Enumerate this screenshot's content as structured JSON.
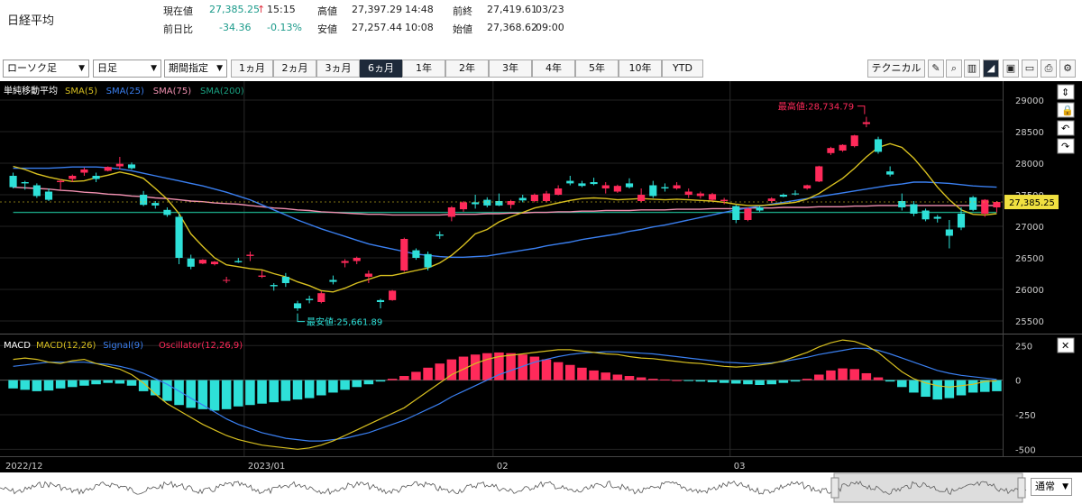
{
  "quote": {
    "name": "日経平均",
    "current_label": "現在値",
    "current_value": "27,385.25",
    "current_arrow": "↑",
    "current_time": "15:15",
    "change_label": "前日比",
    "change_value": "-34.36",
    "change_pct": "-0.13%",
    "high_label": "高値",
    "high_value": "27,397.29",
    "high_time": "14:48",
    "low_label": "安値",
    "low_value": "27,257.44",
    "low_time": "10:08",
    "prev_label": "前終",
    "prev_value": "27,419.61",
    "prev_date": "03/23",
    "open_label": "始値",
    "open_value": "27,368.62",
    "open_time": "09:00"
  },
  "toolbar": {
    "chart_type": "ローソク足",
    "interval": "日足",
    "period_mode": "期間指定",
    "periods": [
      "1ヵ月",
      "2ヵ月",
      "3ヵ月",
      "6ヵ月",
      "1年",
      "2年",
      "3年",
      "4年",
      "5年",
      "10年",
      "YTD"
    ],
    "active_period": "6ヵ月",
    "technical_label": "テクニカル",
    "icons": [
      "pencil-icon",
      "zoom-icon",
      "bar-chart-icon",
      "area-chart-icon",
      "save-icon",
      "folder-icon",
      "open-folder-icon",
      "print-icon",
      "settings-icon"
    ]
  },
  "chart_data": [
    {
      "type": "candlestick",
      "panel_title": "単純移動平均",
      "legend": [
        {
          "name": "SMA(5)",
          "color": "#d8c020"
        },
        {
          "name": "SMA(25)",
          "color": "#3a7ff0"
        },
        {
          "name": "SMA(75)",
          "color": "#f090b0"
        },
        {
          "name": "SMA(200)",
          "color": "#1aa080"
        }
      ],
      "up_color": "#ff2a5a",
      "down_color": "#2ee0d8",
      "ylim": [
        25300,
        29300
      ],
      "yticks": [
        25500,
        26000,
        26500,
        27000,
        27500,
        28000,
        28500,
        29000
      ],
      "ytick_labels": [
        "25500",
        "26000",
        "26500",
        "27000",
        "27500",
        "28000",
        "28500",
        "29000"
      ],
      "xtick_labels": [
        "2022/12",
        "2023/01",
        "02",
        "03"
      ],
      "last_price_label": "27,385.25",
      "last_price": 27385.25,
      "max_annotation": "最高値:28,734.79",
      "max_value": 28734.79,
      "min_annotation": "最安値:25,661.89",
      "min_value": 25661.89,
      "ohlc": [
        [
          27800,
          27850,
          27600,
          27620
        ],
        [
          27700,
          27720,
          27580,
          27680
        ],
        [
          27650,
          27680,
          27450,
          27480
        ],
        [
          27550,
          27600,
          27400,
          27420
        ],
        [
          27700,
          27750,
          27580,
          27720
        ],
        [
          27750,
          27820,
          27700,
          27800
        ],
        [
          27850,
          27930,
          27800,
          27900
        ],
        [
          27800,
          27850,
          27700,
          27750
        ],
        [
          27880,
          27950,
          27870,
          27940
        ],
        [
          27950,
          28100,
          27900,
          27990
        ],
        [
          27980,
          28010,
          27900,
          27920
        ],
        [
          27500,
          27560,
          27320,
          27340
        ],
        [
          27370,
          27400,
          27280,
          27330
        ],
        [
          27260,
          27300,
          27150,
          27180
        ],
        [
          27150,
          27200,
          26400,
          26500
        ],
        [
          26490,
          26550,
          26320,
          26360
        ],
        [
          26410,
          26480,
          26400,
          26470
        ],
        [
          26400,
          26450,
          26380,
          26440
        ],
        [
          26150,
          26200,
          26100,
          26150
        ],
        [
          26450,
          26500,
          26420,
          26430
        ],
        [
          26530,
          26600,
          26450,
          26550
        ],
        [
          26200,
          26300,
          26180,
          26220
        ],
        [
          26070,
          26100,
          25980,
          26050
        ],
        [
          26200,
          26260,
          26040,
          26100
        ],
        [
          25780,
          25820,
          25661,
          25700
        ],
        [
          25850,
          25900,
          25780,
          25830
        ],
        [
          25800,
          25970,
          25780,
          25940
        ],
        [
          26150,
          26220,
          26080,
          26120
        ],
        [
          26420,
          26480,
          26350,
          26450
        ],
        [
          26450,
          26520,
          26400,
          26500
        ],
        [
          26200,
          26300,
          26100,
          26250
        ],
        [
          25830,
          25850,
          25700,
          25800
        ],
        [
          25830,
          25990,
          25820,
          25980
        ],
        [
          26300,
          26820,
          26280,
          26800
        ],
        [
          26620,
          26650,
          26470,
          26500
        ],
        [
          26560,
          26600,
          26300,
          26350
        ],
        [
          26870,
          26920,
          26800,
          26850
        ],
        [
          27150,
          27320,
          27080,
          27300
        ],
        [
          27270,
          27400,
          27230,
          27380
        ],
        [
          27380,
          27500,
          27280,
          27350
        ],
        [
          27420,
          27460,
          27300,
          27330
        ],
        [
          27400,
          27520,
          27320,
          27330
        ],
        [
          27340,
          27420,
          27280,
          27400
        ],
        [
          27450,
          27500,
          27380,
          27410
        ],
        [
          27400,
          27520,
          27380,
          27500
        ],
        [
          27400,
          27560,
          27380,
          27520
        ],
        [
          27500,
          27650,
          27490,
          27600
        ],
        [
          27720,
          27800,
          27650,
          27680
        ],
        [
          27680,
          27720,
          27620,
          27640
        ],
        [
          27700,
          27770,
          27650,
          27670
        ],
        [
          27600,
          27700,
          27520,
          27650
        ],
        [
          27550,
          27660,
          27530,
          27640
        ],
        [
          27680,
          27760,
          27600,
          27620
        ],
        [
          27400,
          27600,
          27380,
          27500
        ],
        [
          27650,
          27720,
          27450,
          27480
        ],
        [
          27620,
          27680,
          27550,
          27600
        ],
        [
          27600,
          27700,
          27580,
          27650
        ],
        [
          27500,
          27600,
          27450,
          27550
        ],
        [
          27480,
          27550,
          27440,
          27520
        ],
        [
          27420,
          27530,
          27400,
          27510
        ],
        [
          27400,
          27450,
          27350,
          27420
        ],
        [
          27320,
          27340,
          27050,
          27100
        ],
        [
          27100,
          27300,
          27080,
          27280
        ],
        [
          27300,
          27320,
          27230,
          27250
        ],
        [
          27400,
          27460,
          27370,
          27440
        ],
        [
          27500,
          27520,
          27460,
          27470
        ],
        [
          27520,
          27570,
          27490,
          27510
        ],
        [
          27600,
          27660,
          27580,
          27650
        ],
        [
          27710,
          27960,
          27700,
          27950
        ],
        [
          28160,
          28260,
          28130,
          28240
        ],
        [
          28200,
          28300,
          28180,
          28290
        ],
        [
          28270,
          28450,
          28250,
          28440
        ],
        [
          28620,
          28734.79,
          28570,
          28650
        ],
        [
          28380,
          28420,
          28150,
          28180
        ],
        [
          27870,
          27950,
          27790,
          27820
        ],
        [
          27400,
          27520,
          27250,
          27300
        ],
        [
          27350,
          27400,
          27160,
          27200
        ],
        [
          27250,
          27280,
          27080,
          27110
        ],
        [
          27150,
          27180,
          27060,
          27120
        ],
        [
          26950,
          27100,
          26650,
          26850
        ],
        [
          27200,
          27300,
          26940,
          26980
        ],
        [
          27460,
          27480,
          27240,
          27260
        ],
        [
          27200,
          27430,
          27150,
          27420
        ],
        [
          27300,
          27400,
          27220,
          27385.25
        ]
      ],
      "sma5": [
        27950,
        27900,
        27830,
        27780,
        27740,
        27710,
        27720,
        27770,
        27810,
        27860,
        27820,
        27760,
        27600,
        27430,
        27200,
        26880,
        26680,
        26500,
        26390,
        26360,
        26330,
        26310,
        26250,
        26200,
        26120,
        26060,
        25980,
        25960,
        26020,
        26100,
        26160,
        26220,
        26220,
        26260,
        26300,
        26340,
        26420,
        26540,
        26700,
        26880,
        26950,
        27070,
        27150,
        27220,
        27290,
        27330,
        27370,
        27410,
        27440,
        27450,
        27440,
        27420,
        27430,
        27440,
        27430,
        27420,
        27430,
        27420,
        27410,
        27400,
        27380,
        27350,
        27330,
        27330,
        27340,
        27360,
        27380,
        27430,
        27520,
        27640,
        27760,
        27920,
        28100,
        28250,
        28310,
        28250,
        28080,
        27860,
        27620,
        27420,
        27260,
        27190,
        27180,
        27200
      ],
      "sma25": [
        27920,
        27920,
        27920,
        27920,
        27930,
        27940,
        27940,
        27940,
        27930,
        27910,
        27880,
        27840,
        27800,
        27760,
        27720,
        27680,
        27640,
        27590,
        27540,
        27480,
        27420,
        27340,
        27260,
        27180,
        27100,
        27030,
        26960,
        26900,
        26840,
        26780,
        26720,
        26680,
        26640,
        26600,
        26560,
        26540,
        26520,
        26510,
        26510,
        26520,
        26530,
        26560,
        26590,
        26620,
        26650,
        26690,
        26720,
        26750,
        26790,
        26820,
        26850,
        26880,
        26920,
        26950,
        26990,
        27020,
        27060,
        27100,
        27140,
        27180,
        27220,
        27260,
        27290,
        27320,
        27350,
        27380,
        27410,
        27440,
        27470,
        27500,
        27530,
        27560,
        27590,
        27620,
        27650,
        27670,
        27700,
        27700,
        27690,
        27680,
        27660,
        27640,
        27630,
        27620
      ],
      "sma75": [
        27620,
        27610,
        27600,
        27590,
        27570,
        27560,
        27540,
        27530,
        27510,
        27500,
        27480,
        27470,
        27450,
        27440,
        27420,
        27400,
        27390,
        27370,
        27360,
        27350,
        27330,
        27310,
        27290,
        27280,
        27260,
        27250,
        27230,
        27220,
        27210,
        27200,
        27190,
        27190,
        27180,
        27180,
        27180,
        27180,
        27180,
        27190,
        27190,
        27190,
        27200,
        27200,
        27210,
        27210,
        27220,
        27220,
        27230,
        27230,
        27240,
        27240,
        27250,
        27250,
        27250,
        27260,
        27260,
        27260,
        27270,
        27270,
        27270,
        27280,
        27280,
        27280,
        27290,
        27290,
        27290,
        27300,
        27300,
        27300,
        27310,
        27310,
        27310,
        27320,
        27320,
        27330,
        27330,
        27330,
        27330,
        27330,
        27330,
        27330,
        27330,
        27330,
        27330,
        27330
      ],
      "sma200": [
        27220,
        27220,
        27220,
        27220,
        27220,
        27220,
        27220,
        27220,
        27220,
        27220,
        27220,
        27220,
        27220,
        27220,
        27220,
        27220,
        27220,
        27220,
        27220,
        27220,
        27220,
        27220,
        27220,
        27220,
        27220,
        27220,
        27220,
        27220,
        27220,
        27220,
        27220,
        27220,
        27220,
        27220,
        27220,
        27220,
        27220,
        27220,
        27220,
        27220,
        27220,
        27220,
        27220,
        27220,
        27220,
        27220,
        27220,
        27220,
        27220,
        27220,
        27220,
        27220,
        27220,
        27220,
        27220,
        27220,
        27220,
        27220,
        27220,
        27220,
        27220,
        27220,
        27220,
        27220,
        27220,
        27220,
        27220,
        27220,
        27220,
        27220,
        27220,
        27220,
        27220,
        27220,
        27220,
        27220,
        27220,
        27220,
        27220,
        27220,
        27220,
        27220,
        27220,
        27220
      ]
    },
    {
      "type": "macd",
      "panel_title": "MACD",
      "legend": [
        {
          "name": "MACD(12,26)",
          "color": "#d8c020"
        },
        {
          "name": "Signal(9)",
          "color": "#3a7ff0"
        },
        {
          "name": "Oscillator(12,26,9)",
          "color": "#ff2a5a"
        }
      ],
      "ylim": [
        -550,
        330
      ],
      "yticks": [
        -500,
        -250,
        0,
        250
      ],
      "ytick_labels": [
        "-500",
        "-250",
        "0",
        "250"
      ],
      "oscillator": [
        -60,
        -70,
        -80,
        -75,
        -60,
        -50,
        -40,
        -30,
        -20,
        -25,
        -40,
        -80,
        -110,
        -150,
        -180,
        -200,
        -210,
        -220,
        -210,
        -190,
        -180,
        -170,
        -160,
        -150,
        -140,
        -130,
        -110,
        -90,
        -70,
        -50,
        -30,
        -10,
        10,
        30,
        60,
        90,
        120,
        150,
        170,
        185,
        195,
        200,
        195,
        185,
        170,
        150,
        130,
        110,
        90,
        70,
        55,
        40,
        30,
        20,
        10,
        5,
        0,
        -5,
        -10,
        -15,
        -20,
        -25,
        -30,
        -35,
        -30,
        -20,
        -10,
        10,
        40,
        70,
        85,
        80,
        50,
        20,
        -10,
        -50,
        -90,
        -120,
        -140,
        -130,
        -110,
        -90,
        -85,
        -80
      ],
      "macd": [
        150,
        160,
        150,
        130,
        120,
        140,
        150,
        120,
        100,
        80,
        40,
        -20,
        -100,
        -170,
        -220,
        -270,
        -320,
        -360,
        -400,
        -430,
        -450,
        -470,
        -480,
        -490,
        -500,
        -490,
        -470,
        -440,
        -400,
        -360,
        -320,
        -280,
        -240,
        -200,
        -140,
        -80,
        -20,
        40,
        80,
        120,
        150,
        170,
        180,
        190,
        200,
        210,
        220,
        220,
        210,
        200,
        190,
        185,
        170,
        160,
        155,
        145,
        135,
        125,
        120,
        110,
        100,
        95,
        100,
        110,
        120,
        140,
        170,
        200,
        240,
        270,
        290,
        280,
        250,
        200,
        130,
        60,
        10,
        -20,
        -40,
        -50,
        -40,
        -30,
        -10,
        -5
      ],
      "signal": [
        100,
        110,
        120,
        130,
        130,
        130,
        130,
        120,
        115,
        100,
        80,
        50,
        10,
        -30,
        -80,
        -130,
        -180,
        -230,
        -280,
        -320,
        -350,
        -380,
        -400,
        -420,
        -430,
        -440,
        -440,
        -430,
        -420,
        -400,
        -380,
        -350,
        -320,
        -290,
        -250,
        -210,
        -170,
        -120,
        -80,
        -40,
        0,
        40,
        70,
        100,
        130,
        150,
        170,
        185,
        195,
        200,
        205,
        205,
        200,
        195,
        190,
        180,
        170,
        160,
        150,
        140,
        130,
        125,
        120,
        120,
        125,
        135,
        150,
        165,
        185,
        200,
        215,
        230,
        230,
        215,
        190,
        160,
        130,
        100,
        70,
        50,
        35,
        25,
        15,
        5
      ]
    }
  ],
  "navigator": {
    "scale_label": "通常"
  }
}
